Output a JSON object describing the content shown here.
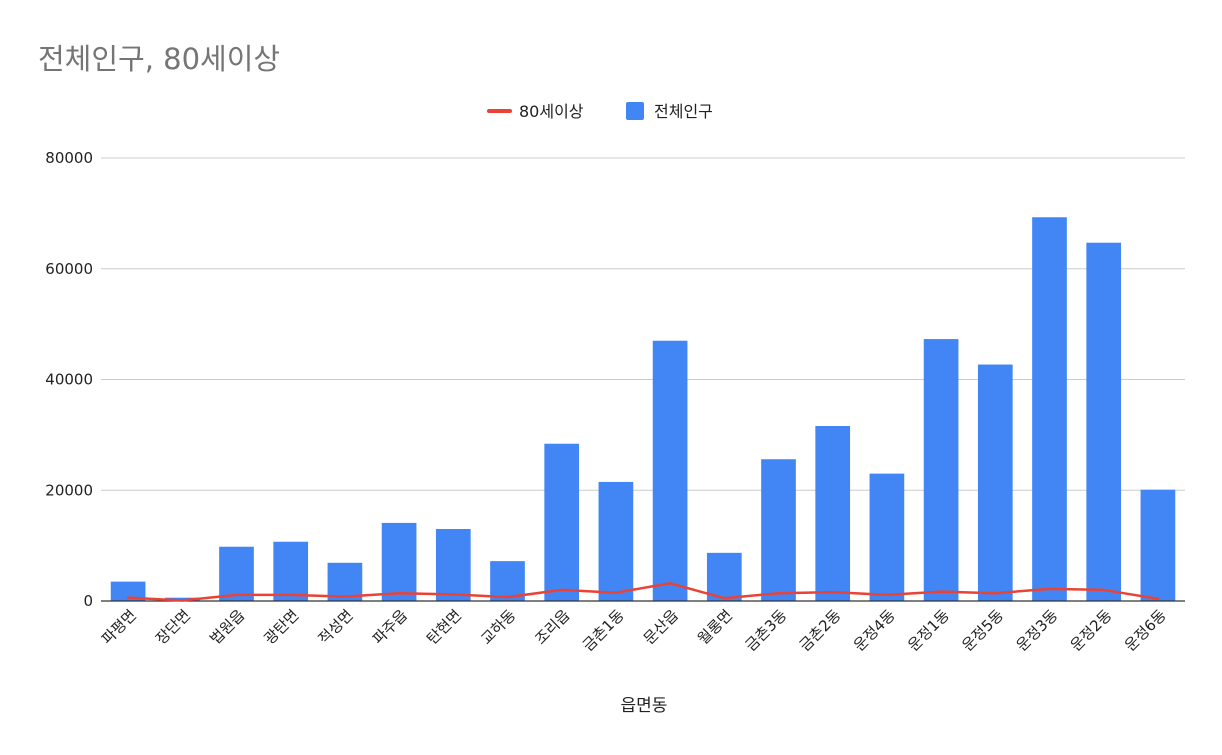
{
  "chart_data": {
    "type": "bar",
    "title": "전체인구, 80세이상",
    "xlabel": "읍면동",
    "ylabel": "",
    "ylim": [
      0,
      80000
    ],
    "yticks": [
      "0",
      "20000",
      "40000",
      "60000",
      "80000"
    ],
    "grid": true,
    "legend_position": "top",
    "categories": [
      "파평면",
      "장단면",
      "법원읍",
      "광탄면",
      "적성면",
      "파주읍",
      "탄현면",
      "교하동",
      "조리읍",
      "금촌1동",
      "문산읍",
      "월롱면",
      "금촌3동",
      "금촌2동",
      "운정4동",
      "운정1동",
      "운정5동",
      "운정3동",
      "운정2동",
      "운정6동"
    ],
    "series": [
      {
        "name": "80세이상",
        "kind": "line",
        "color": "#ea4335",
        "values": [
          600,
          100,
          1100,
          1100,
          800,
          1400,
          1200,
          700,
          2000,
          1500,
          3200,
          500,
          1400,
          1600,
          1100,
          1700,
          1400,
          2200,
          2000,
          400
        ]
      },
      {
        "name": "전체인구",
        "kind": "bar",
        "color": "#4285f4",
        "values": [
          3500,
          600,
          9800,
          10700,
          6900,
          14100,
          13000,
          7200,
          28400,
          21500,
          47000,
          8700,
          25600,
          31600,
          23000,
          47300,
          42700,
          69300,
          64700,
          20100
        ]
      }
    ]
  }
}
